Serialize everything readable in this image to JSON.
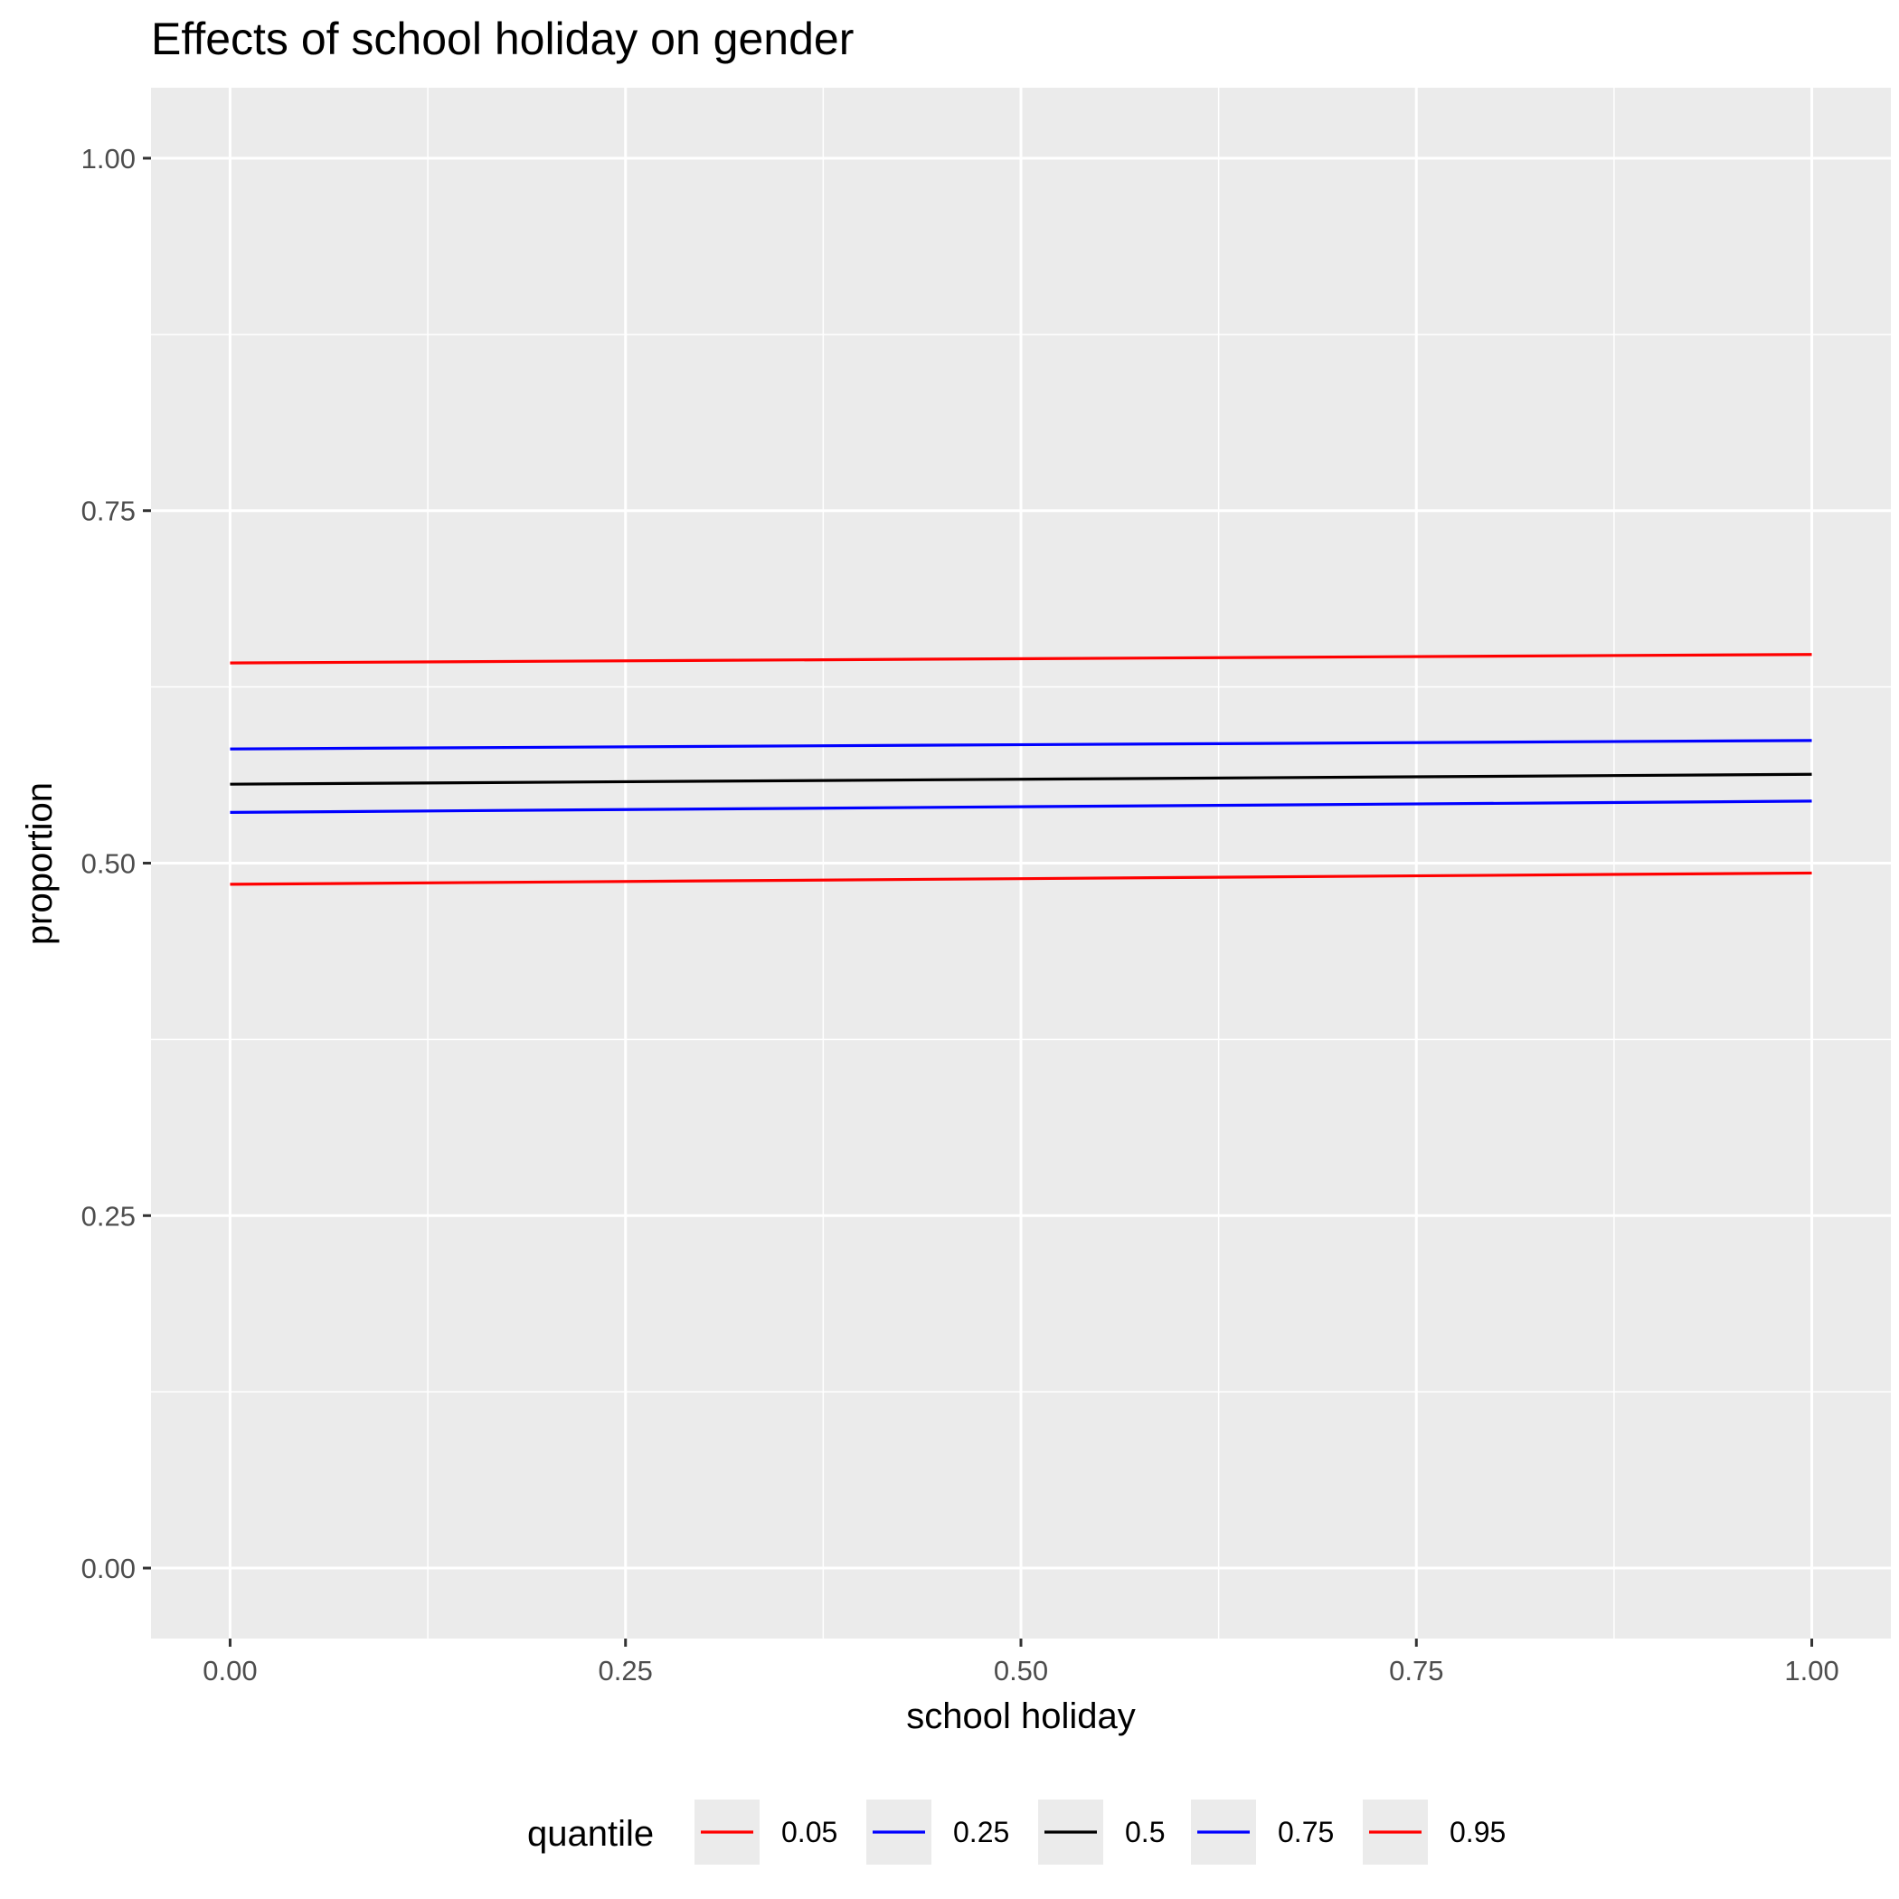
{
  "chart_data": {
    "type": "line",
    "title": "Effects of school holiday on gender",
    "xlabel": "school holiday",
    "ylabel": "proportion",
    "xlim": [
      -0.05,
      1.05
    ],
    "ylim": [
      -0.05,
      1.05
    ],
    "x_ticks": [
      0,
      0.25,
      0.5,
      0.75,
      1
    ],
    "x_tick_labels": [
      "0.00",
      "0.25",
      "0.50",
      "0.75",
      "1.00"
    ],
    "y_ticks": [
      0,
      0.25,
      0.5,
      0.75,
      1
    ],
    "y_tick_labels": [
      "0.00",
      "0.25",
      "0.50",
      "0.75",
      "1.00"
    ],
    "x": [
      0,
      1
    ],
    "series": [
      {
        "name": "0.05",
        "color": "#ff0000",
        "values": [
          0.485,
          0.493
        ]
      },
      {
        "name": "0.25",
        "color": "#0000ff",
        "values": [
          0.536,
          0.544
        ]
      },
      {
        "name": "0.5",
        "color": "#000000",
        "values": [
          0.556,
          0.563
        ]
      },
      {
        "name": "0.75",
        "color": "#0000ff",
        "values": [
          0.581,
          0.587
        ]
      },
      {
        "name": "0.95",
        "color": "#ff0000",
        "values": [
          0.642,
          0.648
        ]
      }
    ],
    "legend_title": "quantile",
    "legend_position": "bottom",
    "grid": true,
    "panel_background": "#ebebeb"
  }
}
